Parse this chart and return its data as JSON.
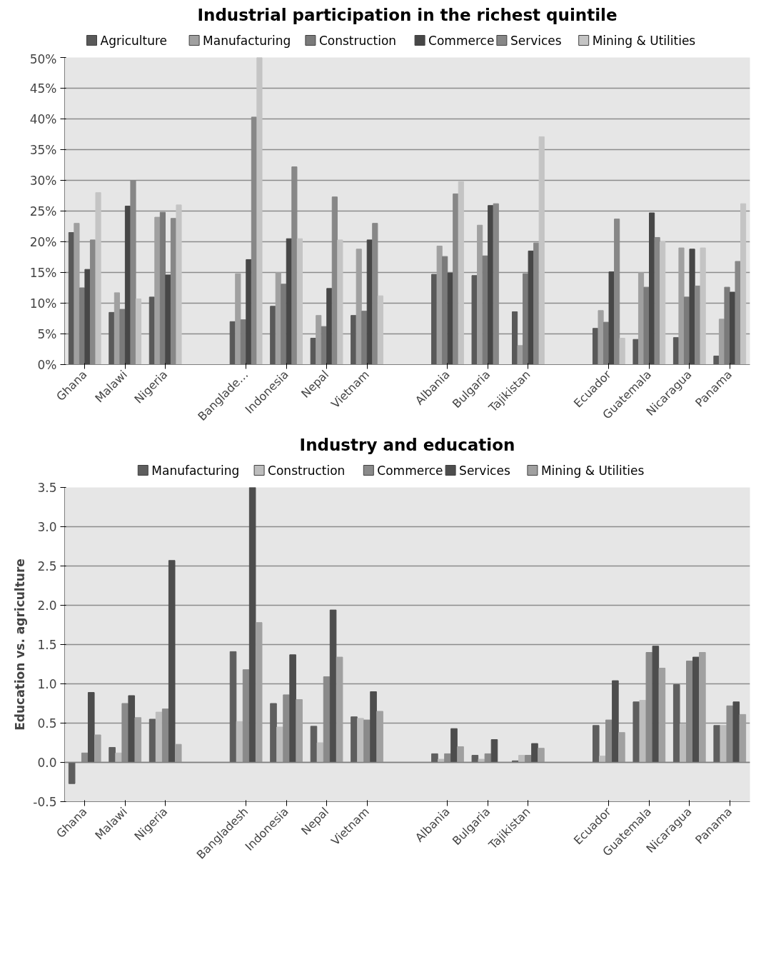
{
  "chart_data": [
    {
      "type": "bar",
      "title": "Industrial participation in the richest quintile",
      "categories": [
        "Ghana",
        "Malawi",
        "Nigeria",
        null,
        "Banglade…",
        "Indonesia",
        "Nepal",
        "Vietnam",
        null,
        "Albania",
        "Bulgaria",
        "Tajikistan",
        null,
        "Ecuador",
        "Guatemala",
        "Nicaragua",
        "Panama"
      ],
      "series": [
        {
          "name": "Agriculture",
          "color": "#595959",
          "values": [
            21.5,
            8.5,
            11,
            null,
            7,
            9.5,
            4.3,
            8,
            null,
            14.7,
            14.5,
            8.6,
            null,
            5.9,
            4.1,
            4.4,
            1.4
          ]
        },
        {
          "name": "Manufacturing",
          "color": "#a0a0a0",
          "values": [
            23,
            11.7,
            24,
            null,
            14.8,
            15,
            8,
            18.8,
            null,
            19.3,
            22.7,
            3.1,
            null,
            8.8,
            15,
            19,
            7.4
          ]
        },
        {
          "name": "Construction",
          "color": "#7a7a7a",
          "values": [
            12.5,
            9,
            24.8,
            null,
            7.3,
            13.1,
            6.2,
            8.7,
            null,
            17.6,
            17.7,
            14.8,
            null,
            6.9,
            12.6,
            11,
            12.6
          ]
        },
        {
          "name": "Commerce",
          "color": "#474747",
          "values": [
            15.5,
            25.8,
            14.6,
            null,
            17.1,
            20.5,
            12.4,
            20.3,
            null,
            14.9,
            25.9,
            18.5,
            null,
            15.1,
            24.7,
            18.8,
            11.8
          ]
        },
        {
          "name": "Services",
          "color": "#878787",
          "values": [
            20.3,
            30,
            23.8,
            null,
            40.3,
            32.2,
            27.3,
            23,
            null,
            27.8,
            26.2,
            19.8,
            null,
            23.7,
            20.7,
            12.8,
            16.8
          ]
        },
        {
          "name": "Mining & Utilities",
          "color": "#c4c4c4",
          "values": [
            28,
            10.7,
            26,
            null,
            50,
            20.5,
            20.3,
            11.2,
            null,
            29.8,
            null,
            37.1,
            null,
            4.3,
            20,
            19,
            26.2
          ]
        }
      ],
      "ylim": [
        0,
        50
      ],
      "yticks": [
        {
          "value": 0,
          "label": "0%"
        },
        {
          "value": 5,
          "label": "5%"
        },
        {
          "value": 10,
          "label": "10%"
        },
        {
          "value": 15,
          "label": "15%"
        },
        {
          "value": 20,
          "label": "20%"
        },
        {
          "value": 25,
          "label": "25%"
        },
        {
          "value": 30,
          "label": "30%"
        },
        {
          "value": 35,
          "label": "35%"
        },
        {
          "value": 40,
          "label": "40%"
        },
        {
          "value": 45,
          "label": "45%"
        },
        {
          "value": 50,
          "label": "50%"
        }
      ],
      "grid": "y",
      "legend": "top"
    },
    {
      "type": "bar",
      "title": "Industry and education",
      "ylabel": "Education vs. agriculture",
      "categories": [
        "Ghana",
        "Malawi",
        "Nigeria",
        null,
        "Bangladesh",
        "Indonesia",
        "Nepal",
        "Vietnam",
        null,
        "Albania",
        "Bulgaria",
        "Tajikistan",
        null,
        "Ecuador",
        "Guatemala",
        "Nicaragua",
        "Panama"
      ],
      "series": [
        {
          "name": "Manufacturing",
          "color": "#5e5e5e",
          "values": [
            -0.27,
            0.19,
            0.55,
            null,
            1.41,
            0.75,
            0.46,
            0.58,
            null,
            0.11,
            0.09,
            0.02,
            null,
            0.47,
            0.77,
            0.99,
            0.47
          ]
        },
        {
          "name": "Construction",
          "color": "#bdbdbd",
          "values": [
            0,
            0.12,
            0.64,
            null,
            0.52,
            0.45,
            0.25,
            0.56,
            null,
            0.04,
            0.04,
            0.09,
            null,
            0.08,
            0.79,
            0.49,
            0.47
          ]
        },
        {
          "name": "Commerce",
          "color": "#8a8a8a",
          "values": [
            0.12,
            0.75,
            0.68,
            null,
            1.18,
            0.86,
            1.09,
            0.54,
            null,
            0.11,
            0.11,
            0.09,
            null,
            0.54,
            1.4,
            1.29,
            0.72
          ]
        },
        {
          "name": "Services",
          "color": "#4d4d4d",
          "values": [
            0.89,
            0.85,
            2.57,
            null,
            3.5,
            1.37,
            1.94,
            0.9,
            null,
            0.43,
            0.29,
            0.24,
            null,
            1.04,
            1.48,
            1.34,
            0.77
          ]
        },
        {
          "name": "Mining & Utilities",
          "color": "#a0a0a0",
          "values": [
            0.35,
            0.57,
            0.23,
            null,
            1.78,
            0.8,
            1.34,
            0.65,
            null,
            0.2,
            null,
            0.18,
            null,
            0.38,
            1.2,
            1.4,
            0.61
          ]
        }
      ],
      "ylim": [
        -0.5,
        3.5
      ],
      "yticks": [
        {
          "value": -0.5,
          "label": "-0.5"
        },
        {
          "value": 0,
          "label": "0.0"
        },
        {
          "value": 0.5,
          "label": "0.5"
        },
        {
          "value": 1,
          "label": "1.0"
        },
        {
          "value": 1.5,
          "label": "1.5"
        },
        {
          "value": 2,
          "label": "2.0"
        },
        {
          "value": 2.5,
          "label": "2.5"
        },
        {
          "value": 3,
          "label": "3.0"
        },
        {
          "value": 3.5,
          "label": "3.5"
        }
      ],
      "grid": "y",
      "legend": "top"
    }
  ]
}
